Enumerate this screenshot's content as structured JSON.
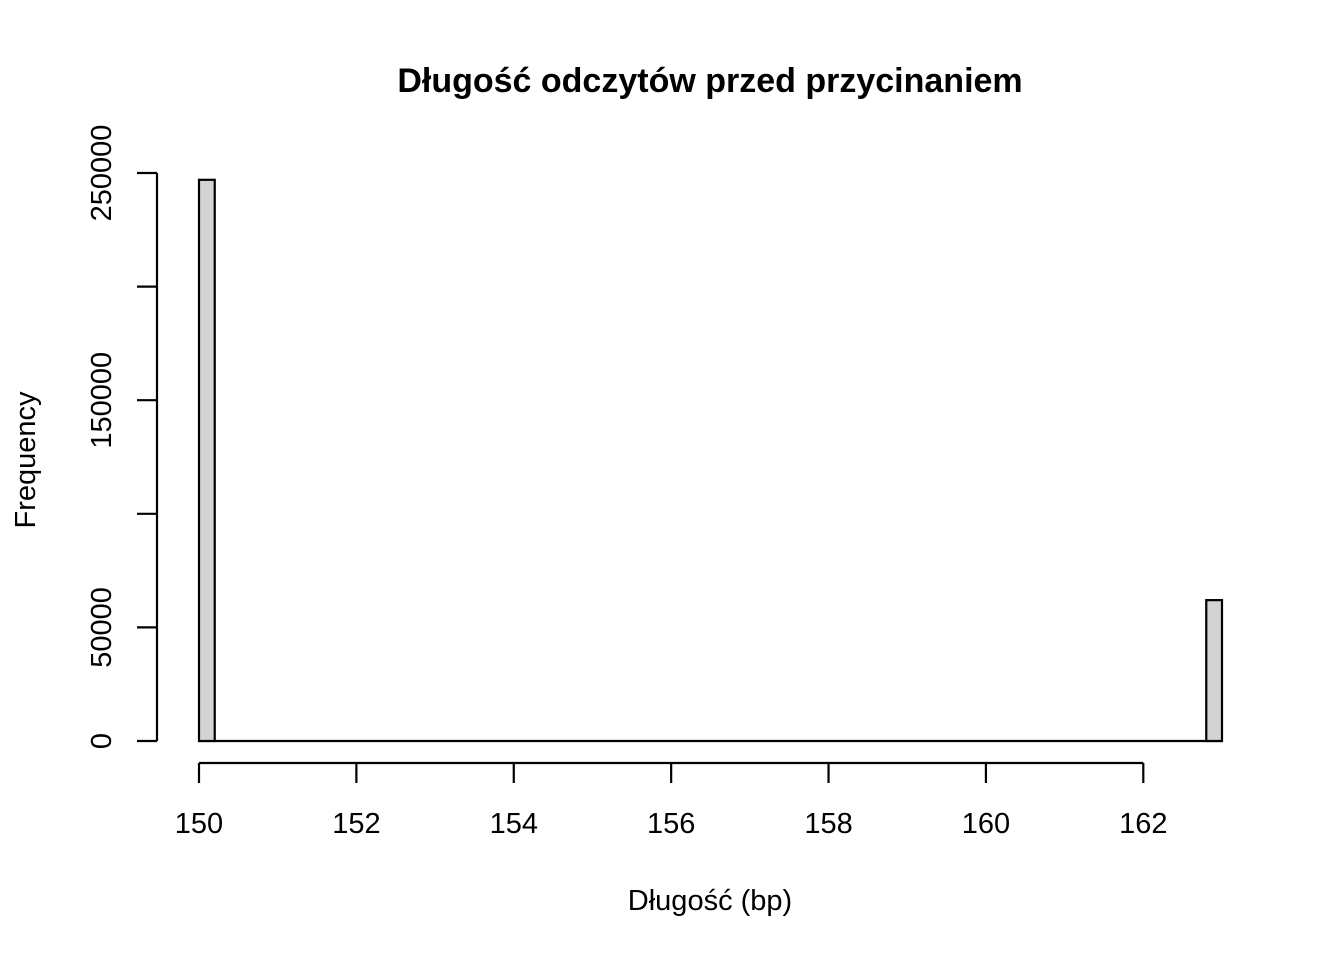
{
  "chart_data": {
    "type": "bar",
    "title": "Długość odczytów przed przycinaniem",
    "xlabel": "Długość (bp)",
    "ylabel": "Frequency",
    "xlim": [
      150,
      163
    ],
    "ylim": [
      0,
      250000
    ],
    "x_ticks": [
      150,
      152,
      154,
      156,
      158,
      160,
      162
    ],
    "x_tick_labels": [
      "150",
      "152",
      "154",
      "156",
      "158",
      "160",
      "162"
    ],
    "y_ticks": [
      0,
      50000,
      100000,
      150000,
      200000,
      250000
    ],
    "y_tick_labels": [
      "0",
      "50000",
      "",
      "150000",
      "",
      "250000"
    ],
    "bin_width": 0.2,
    "bins": [
      {
        "start": 150.0,
        "end": 150.2,
        "value": 247000
      },
      {
        "start": 162.8,
        "end": 163.0,
        "value": 62000
      }
    ],
    "bar_fill": "#d3d3d3",
    "bar_stroke": "#000000",
    "grid": false,
    "legend": "none"
  }
}
